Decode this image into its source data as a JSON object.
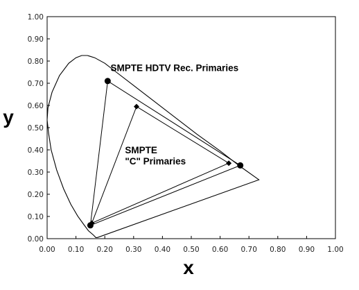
{
  "chart_data": {
    "type": "scatter",
    "title": "",
    "xlabel": "x",
    "ylabel": "y",
    "xlim": [
      0.0,
      1.0
    ],
    "ylim": [
      0.0,
      1.0
    ],
    "grid": false,
    "legend": "none",
    "x_ticks": [
      "0.00",
      "0.10",
      "0.20",
      "0.30",
      "0.40",
      "0.50",
      "0.60",
      "0.70",
      "0.80",
      "0.90",
      "1.00"
    ],
    "y_ticks": [
      "0.00",
      "0.10",
      "0.20",
      "0.30",
      "0.40",
      "0.50",
      "0.60",
      "0.70",
      "0.80",
      "0.90",
      "1.00"
    ],
    "spectral_locus": [
      [
        0.1741,
        0.005
      ],
      [
        0.169,
        0.005
      ],
      [
        0.16,
        0.017
      ],
      [
        0.143,
        0.036
      ],
      [
        0.127,
        0.064
      ],
      [
        0.106,
        0.102
      ],
      [
        0.082,
        0.155
      ],
      [
        0.057,
        0.225
      ],
      [
        0.033,
        0.31
      ],
      [
        0.014,
        0.4
      ],
      [
        0.005,
        0.475
      ],
      [
        0.0,
        0.535
      ],
      [
        0.003,
        0.59
      ],
      [
        0.017,
        0.66
      ],
      [
        0.043,
        0.735
      ],
      [
        0.075,
        0.79
      ],
      [
        0.1,
        0.815
      ],
      [
        0.12,
        0.825
      ],
      [
        0.14,
        0.825
      ],
      [
        0.165,
        0.815
      ],
      [
        0.2,
        0.79
      ],
      [
        0.24,
        0.75
      ],
      [
        0.3,
        0.69
      ],
      [
        0.37,
        0.62
      ],
      [
        0.45,
        0.54
      ],
      [
        0.52,
        0.47
      ],
      [
        0.6,
        0.395
      ],
      [
        0.67,
        0.325
      ],
      [
        0.7347,
        0.2653
      ]
    ],
    "series": [
      {
        "name": "SMPTE HDTV Rec. Primaries",
        "marker": "circle",
        "points": [
          [
            0.21,
            0.71
          ],
          [
            0.67,
            0.33
          ],
          [
            0.15,
            0.06
          ]
        ]
      },
      {
        "name": "SMPTE \"C\" Primaries",
        "marker": "diamond",
        "points": [
          [
            0.31,
            0.595
          ],
          [
            0.63,
            0.34
          ],
          [
            0.155,
            0.07
          ]
        ]
      }
    ],
    "annotations": [
      {
        "lines": [
          "SMPTE HDTV Rec. Primaries"
        ],
        "x": 0.22,
        "y": 0.755
      },
      {
        "lines": [
          "SMPTE",
          "\"C\" Primaries"
        ],
        "x": 0.27,
        "y": 0.385
      }
    ]
  }
}
